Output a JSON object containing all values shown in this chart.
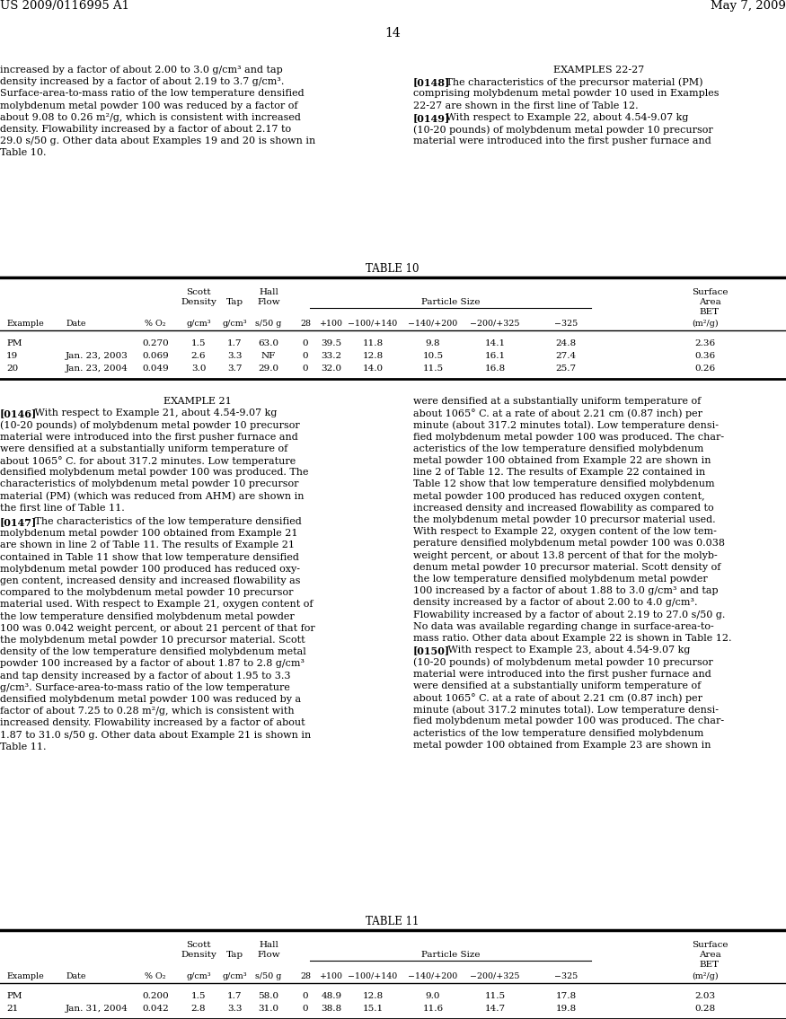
{
  "page_number": "14",
  "header_left": "US 2009/0116995 A1",
  "header_right": "May 7, 2009",
  "background_color": "#ffffff",
  "table10_title": "TABLE 10",
  "table10_data": [
    [
      "PM",
      "",
      "0.270",
      "1.5",
      "1.7",
      "63.0",
      "0",
      "39.5",
      "11.8",
      "9.8",
      "14.1",
      "24.8",
      "2.36"
    ],
    [
      "19",
      "Jan. 23, 2003",
      "0.069",
      "2.6",
      "3.3",
      "NF",
      "0",
      "33.2",
      "12.8",
      "10.5",
      "16.1",
      "27.4",
      "0.36"
    ],
    [
      "20",
      "Jan. 23, 2004",
      "0.049",
      "3.0",
      "3.7",
      "29.0",
      "0",
      "32.0",
      "14.0",
      "11.5",
      "16.8",
      "25.7",
      "0.26"
    ]
  ],
  "table11_title": "TABLE 11",
  "table11_data": [
    [
      "PM",
      "",
      "0.200",
      "1.5",
      "1.7",
      "58.0",
      "0",
      "48.9",
      "12.8",
      "9.0",
      "11.5",
      "17.8",
      "2.03"
    ],
    [
      "21",
      "Jan. 31, 2004",
      "0.042",
      "2.8",
      "3.3",
      "31.0",
      "0",
      "38.8",
      "15.1",
      "11.6",
      "14.7",
      "19.8",
      "0.28"
    ]
  ]
}
